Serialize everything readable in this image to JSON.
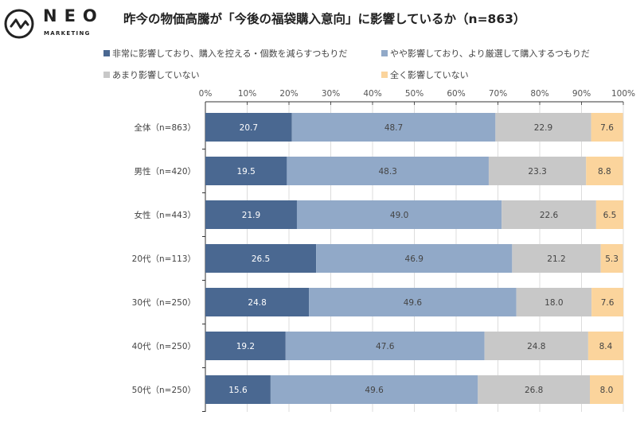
{
  "logo": {
    "word": "NEO",
    "sub": "MARKETING"
  },
  "chart_data": {
    "type": "bar",
    "orientation": "horizontal",
    "stacked": true,
    "title": "昨今の物価高騰が「今後の福袋購入意向」に影響しているか（n=863）",
    "categories": [
      "全体（n=863）",
      "男性（n=420）",
      "女性（n=443）",
      "20代（n=113）",
      "30代（n=250）",
      "40代（n=250）",
      "50代（n=250）"
    ],
    "series": [
      {
        "name": "非常に影響しており、購入を控える・個数を減らすつもりだ",
        "color": "#4a6891",
        "values": [
          20.7,
          19.5,
          21.9,
          26.5,
          24.8,
          19.2,
          15.6
        ]
      },
      {
        "name": "やや影響しており、より厳選して購入するつもりだ",
        "color": "#91a9c8",
        "values": [
          48.7,
          48.3,
          49.0,
          46.9,
          49.6,
          47.6,
          49.6
        ]
      },
      {
        "name": "あまり影響していない",
        "color": "#c8c8c8",
        "values": [
          22.9,
          23.3,
          22.6,
          21.2,
          18.0,
          24.8,
          26.8
        ]
      },
      {
        "name": "全く影響していない",
        "color": "#fbd49c",
        "values": [
          7.6,
          8.8,
          6.5,
          5.3,
          7.6,
          8.4,
          8.0
        ]
      }
    ],
    "xticks": [
      "0%",
      "10%",
      "20%",
      "30%",
      "40%",
      "50%",
      "60%",
      "70%",
      "80%",
      "90%",
      "100%"
    ],
    "xlim": [
      0,
      100
    ],
    "axis_position": "top",
    "grid": true,
    "legend_position": "top"
  }
}
